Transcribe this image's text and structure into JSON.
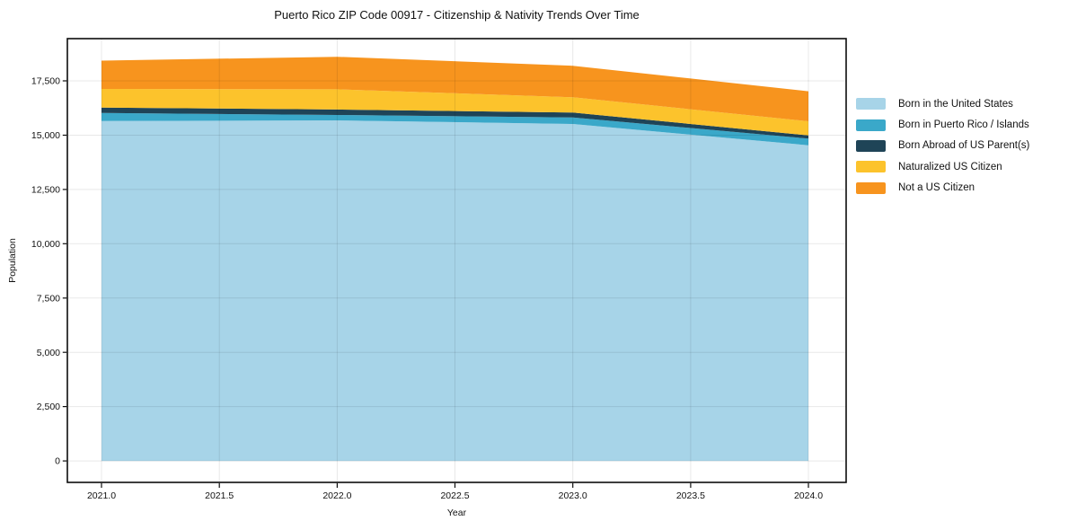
{
  "chart_data": {
    "type": "area",
    "stacked": true,
    "title": "Puerto Rico ZIP Code 00917 - Citizenship & Nativity Trends Over Time",
    "xlabel": "Year",
    "ylabel": "Population",
    "x": [
      2021,
      2022,
      2023,
      2024
    ],
    "series": [
      {
        "name": "Born in the United States",
        "color": "#a7d4e8",
        "values": [
          15650,
          15680,
          15515,
          14535
        ]
      },
      {
        "name": "Born in Puerto Rico / Islands",
        "color": "#3aa8c9",
        "values": [
          370,
          250,
          300,
          305
        ]
      },
      {
        "name": "Born Abroad of US Parent(s)",
        "color": "#1f4457",
        "values": [
          250,
          250,
          225,
          150
        ]
      },
      {
        "name": "Naturalized US Citizen",
        "color": "#fcc32c",
        "values": [
          860,
          930,
          705,
          650
        ]
      },
      {
        "name": "Not a US Citizen",
        "color": "#f7941e",
        "values": [
          1300,
          1500,
          1450,
          1380
        ]
      }
    ],
    "totals": [
      18430,
      18610,
      18195,
      17020
    ],
    "x_ticks": [
      2021.0,
      2021.5,
      2022.0,
      2022.5,
      2023.0,
      2023.5,
      2024.0
    ],
    "x_tick_labels": [
      "2021.0",
      "2021.5",
      "2022.0",
      "2022.5",
      "2023.0",
      "2023.5",
      "2024.0"
    ],
    "y_ticks": [
      0,
      2500,
      5000,
      7500,
      10000,
      12500,
      15000,
      17500
    ],
    "y_tick_labels": [
      "0",
      "2,500",
      "5,000",
      "7,500",
      "10,000",
      "12,500",
      "15,000",
      "17,500"
    ],
    "xlim": [
      2020.855,
      2024.16
    ],
    "ylim": [
      -990,
      19445
    ],
    "grid": true,
    "legend_position": "right",
    "colors": {
      "background": "#ffffff",
      "spine": "#0d0d0d",
      "gridline": "rgba(0,0,0,0.09)",
      "tick": "#0d0d0d"
    }
  }
}
